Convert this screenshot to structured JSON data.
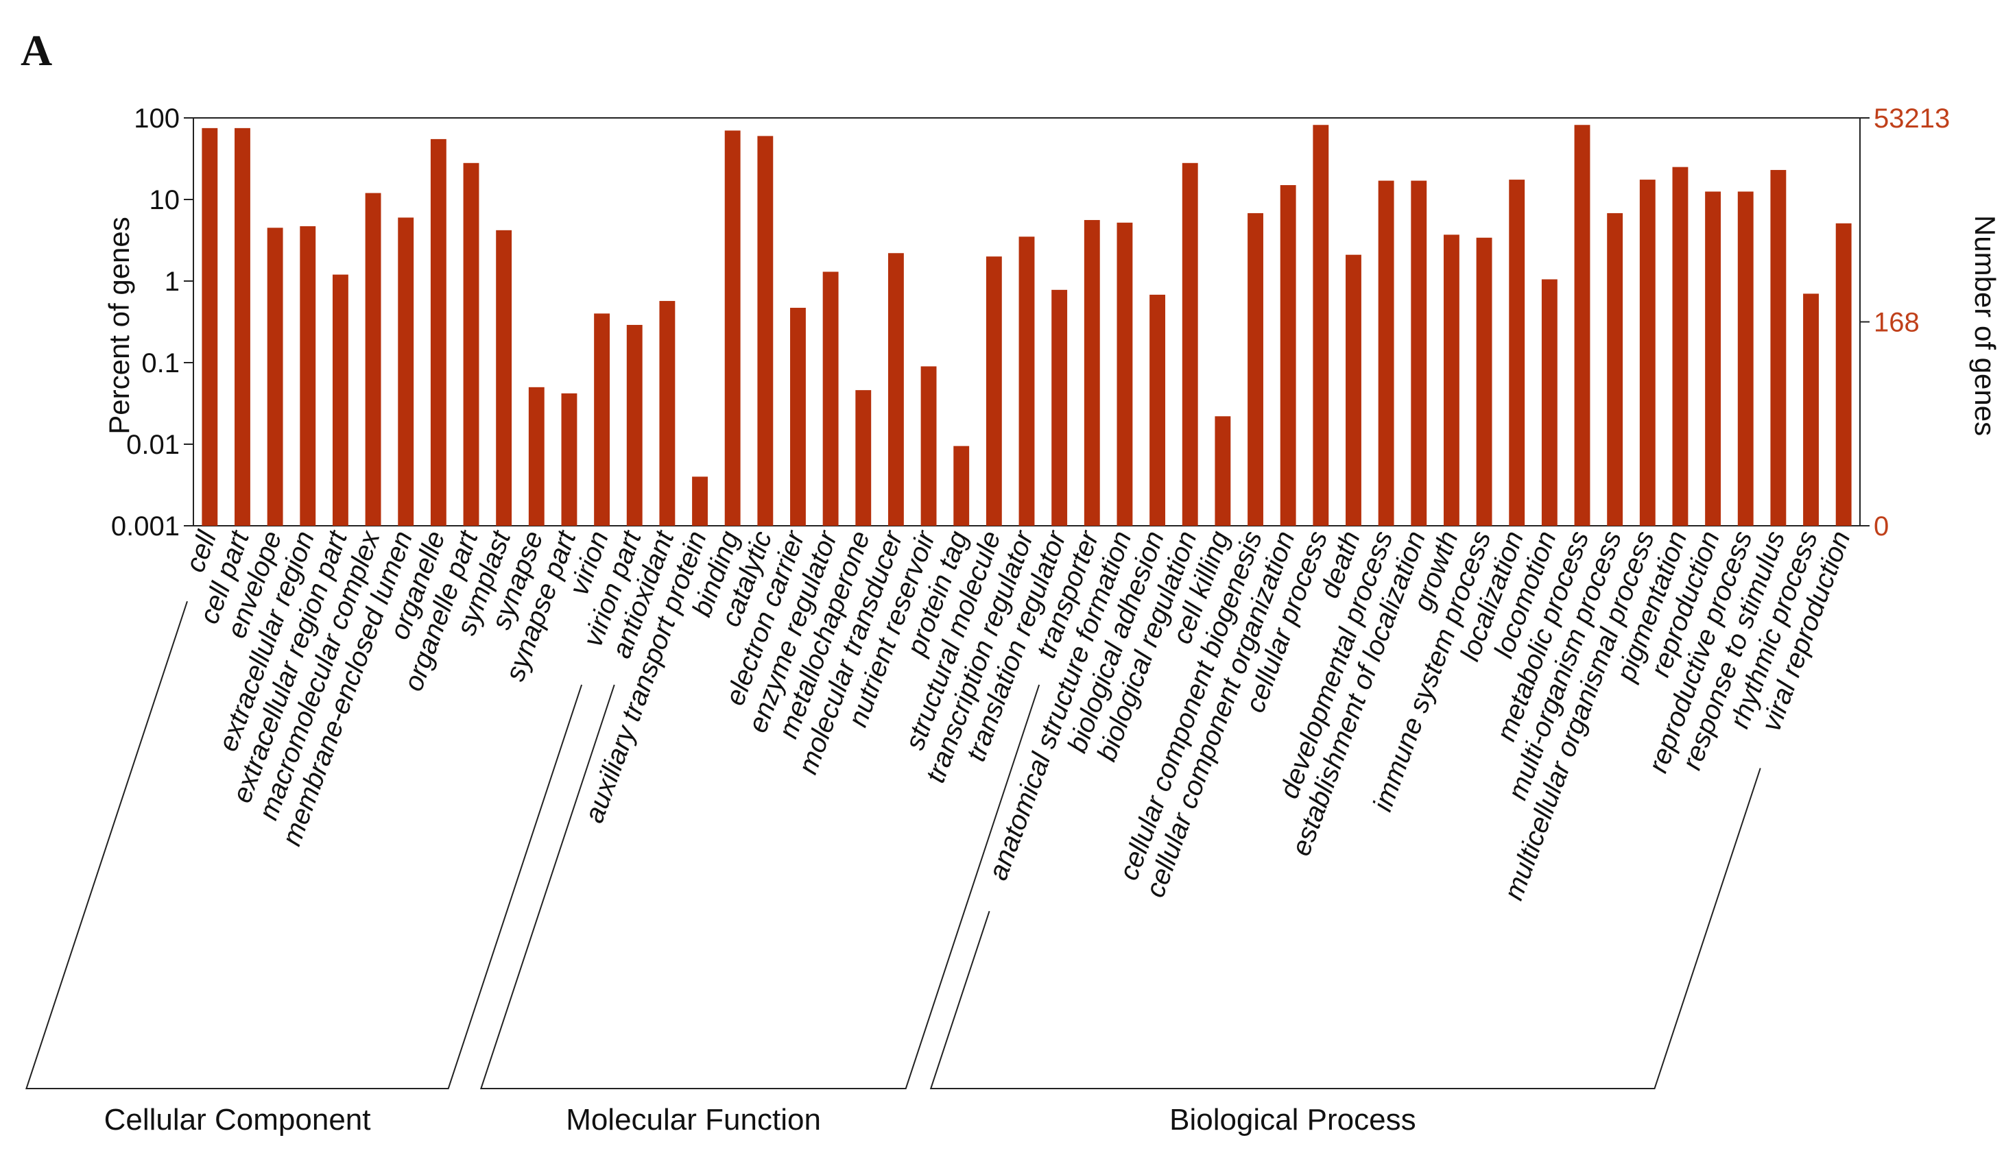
{
  "panel_label": "A",
  "colors": {
    "bar": "#b5300b",
    "right_axis": "#c0401a",
    "axis": "#222222"
  },
  "chart_data": {
    "type": "bar",
    "title": "",
    "xlabel": "",
    "ylabel": "Percent of genes",
    "ylabel_right": "Number of genes",
    "y_scale": "log",
    "ylim": [
      0.001,
      100
    ],
    "y_ticks": [
      "100",
      "10",
      "1",
      "0.1",
      "0.01",
      "0.001"
    ],
    "y_tick_values": [
      100,
      10,
      1,
      0.1,
      0.01,
      0.001
    ],
    "y_right_ticks": [
      "53213",
      "168",
      "0"
    ],
    "y_right_tick_values": [
      100,
      0.316,
      0.001
    ],
    "categories": [
      "cell",
      "cell part",
      "envelope",
      "extracellular region",
      "extracellular region part",
      "macromolecular complex",
      "membrane-enclosed lumen",
      "organelle",
      "organelle part",
      "symplast",
      "synapse",
      "synapse part",
      "virion",
      "virion part",
      "antioxidant",
      "auxiliary transport protein",
      "binding",
      "catalytic",
      "electron carrier",
      "enzyme regulator",
      "metallochaperone",
      "molecular transducer",
      "nutrient reservoir",
      "protein tag",
      "structural molecule",
      "transcription regulator",
      "translation regulator",
      "transporter",
      "anatomical structure formation",
      "biological adhesion",
      "biological regulation",
      "cell killing",
      "cellular component biogenesis",
      "cellular component organization",
      "cellular process",
      "death",
      "developmental process",
      "establishment of localization",
      "growth",
      "immune system process",
      "localization",
      "locomotion",
      "metabolic process",
      "multi-organism process",
      "multicellular organismal process",
      "pigmentation",
      "reproduction",
      "reproductive process",
      "response to stimulus",
      "rhythmic process",
      "viral reproduction"
    ],
    "values": [
      75,
      75,
      4.5,
      4.7,
      1.2,
      12,
      6,
      55,
      28,
      4.2,
      0.05,
      0.042,
      0.4,
      0.29,
      0.57,
      0.004,
      70,
      60,
      0.47,
      1.3,
      0.046,
      2.2,
      0.09,
      0.0095,
      2.0,
      3.5,
      0.78,
      5.6,
      5.2,
      0.68,
      28,
      0.022,
      6.8,
      15,
      82,
      2.1,
      17,
      17,
      3.7,
      3.4,
      17.5,
      1.05,
      82,
      6.8,
      17.5,
      25,
      12.5,
      12.5,
      23,
      0.7,
      5.1
    ],
    "groups": [
      {
        "name": "Cellular Component",
        "start": 0,
        "end": 13
      },
      {
        "name": "Molecular Function",
        "start": 14,
        "end": 27
      },
      {
        "name": "Biological Process",
        "start": 28,
        "end": 50
      }
    ]
  }
}
